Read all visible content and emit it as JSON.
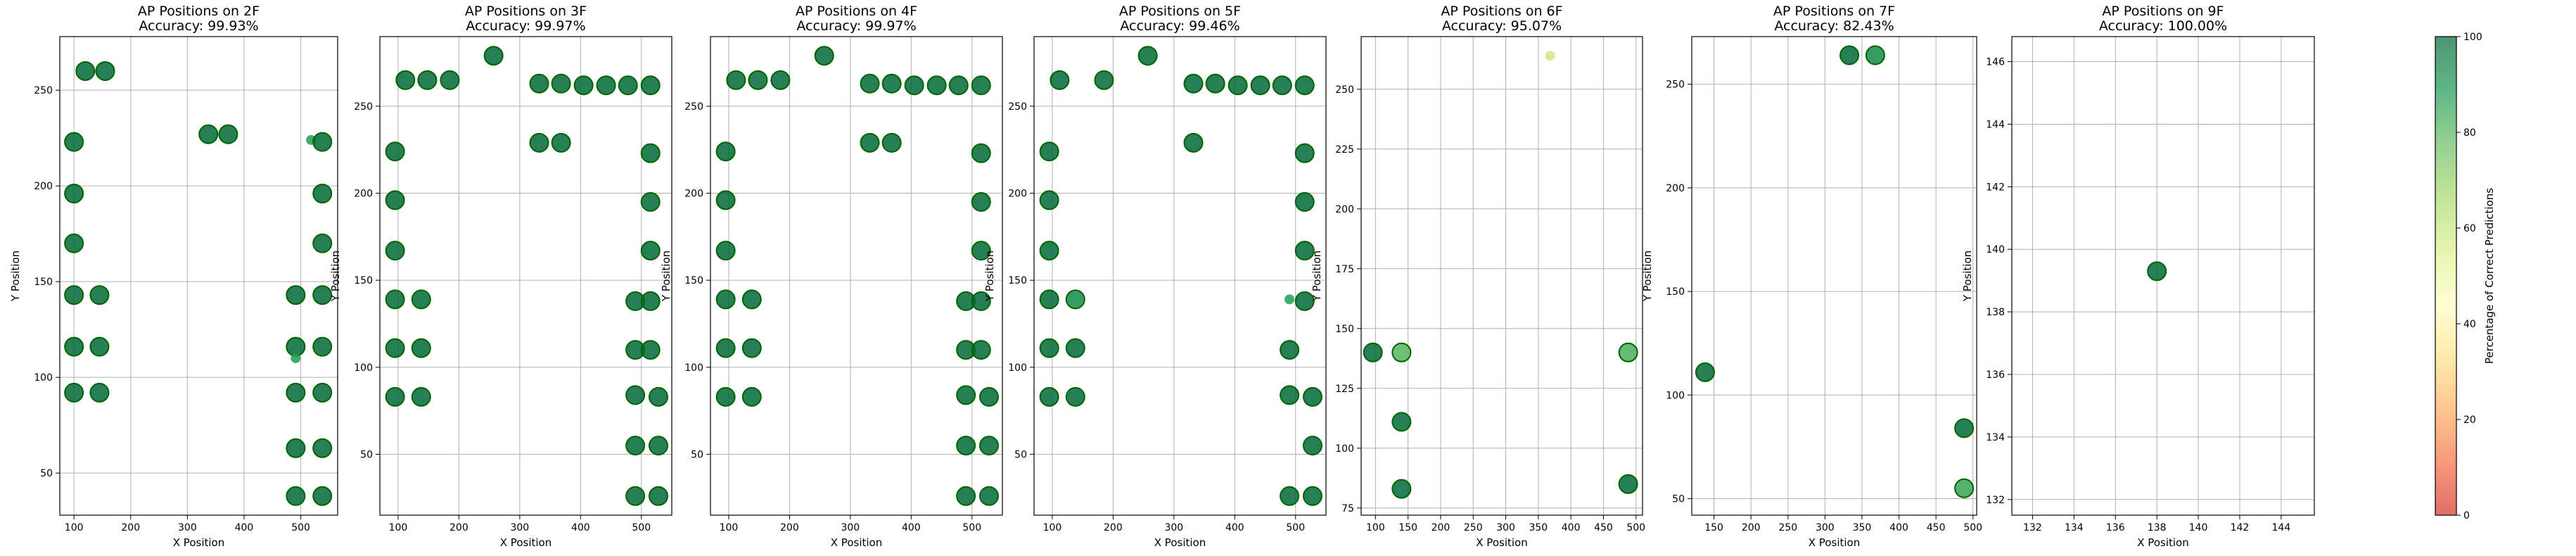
{
  "chart_data": [
    {
      "type": "scatter",
      "title": "AP Positions on 2F",
      "subtitle": "Accuracy: 99.93%",
      "xlabel": "X Position",
      "ylabel": "Y Position",
      "xlim": [
        75,
        565
      ],
      "ylim": [
        28,
        278
      ],
      "xticks": [
        100,
        200,
        300,
        400,
        500
      ],
      "yticks": [
        50,
        100,
        150,
        200,
        250
      ],
      "grid": true,
      "points": [
        {
          "x": 120,
          "y": 260,
          "pct": 100,
          "size": "large"
        },
        {
          "x": 155,
          "y": 260,
          "pct": 100,
          "size": "large"
        },
        {
          "x": 100,
          "y": 223,
          "pct": 100,
          "size": "large"
        },
        {
          "x": 100,
          "y": 196,
          "pct": 100,
          "size": "large"
        },
        {
          "x": 100,
          "y": 170,
          "pct": 100,
          "size": "large"
        },
        {
          "x": 100,
          "y": 143,
          "pct": 100,
          "size": "large"
        },
        {
          "x": 145,
          "y": 143,
          "pct": 100,
          "size": "large"
        },
        {
          "x": 100,
          "y": 116,
          "pct": 100,
          "size": "large"
        },
        {
          "x": 145,
          "y": 116,
          "pct": 100,
          "size": "large"
        },
        {
          "x": 100,
          "y": 92,
          "pct": 100,
          "size": "large"
        },
        {
          "x": 145,
          "y": 92,
          "pct": 100,
          "size": "large"
        },
        {
          "x": 337,
          "y": 227,
          "pct": 100,
          "size": "large"
        },
        {
          "x": 372,
          "y": 227,
          "pct": 100,
          "size": "large"
        },
        {
          "x": 518,
          "y": 224,
          "pct": 88,
          "size": "small"
        },
        {
          "x": 538,
          "y": 223,
          "pct": 100,
          "size": "large"
        },
        {
          "x": 538,
          "y": 196,
          "pct": 100,
          "size": "large"
        },
        {
          "x": 538,
          "y": 170,
          "pct": 100,
          "size": "large"
        },
        {
          "x": 491,
          "y": 143,
          "pct": 100,
          "size": "large"
        },
        {
          "x": 538,
          "y": 143,
          "pct": 100,
          "size": "large"
        },
        {
          "x": 491,
          "y": 116,
          "pct": 100,
          "size": "large"
        },
        {
          "x": 538,
          "y": 116,
          "pct": 100,
          "size": "large"
        },
        {
          "x": 491,
          "y": 110,
          "pct": 88,
          "size": "small"
        },
        {
          "x": 491,
          "y": 92,
          "pct": 100,
          "size": "large"
        },
        {
          "x": 538,
          "y": 92,
          "pct": 100,
          "size": "large"
        },
        {
          "x": 491,
          "y": 63,
          "pct": 100,
          "size": "large"
        },
        {
          "x": 538,
          "y": 63,
          "pct": 100,
          "size": "large"
        },
        {
          "x": 491,
          "y": 38,
          "pct": 100,
          "size": "large"
        },
        {
          "x": 538,
          "y": 38,
          "pct": 100,
          "size": "large"
        }
      ]
    },
    {
      "type": "scatter",
      "title": "AP Positions on 3F",
      "subtitle": "Accuracy: 99.97%",
      "xlabel": "X Position",
      "ylabel": "Y Position",
      "xlim": [
        70,
        550
      ],
      "ylim": [
        15,
        290
      ],
      "xticks": [
        100,
        200,
        300,
        400,
        500
      ],
      "yticks": [
        50,
        100,
        150,
        200,
        250
      ],
      "grid": true,
      "points": [
        {
          "x": 112,
          "y": 265,
          "pct": 100,
          "size": "large"
        },
        {
          "x": 148,
          "y": 265,
          "pct": 100,
          "size": "large"
        },
        {
          "x": 185,
          "y": 265,
          "pct": 100,
          "size": "large"
        },
        {
          "x": 257,
          "y": 279,
          "pct": 100,
          "size": "large"
        },
        {
          "x": 332,
          "y": 263,
          "pct": 100,
          "size": "large"
        },
        {
          "x": 368,
          "y": 263,
          "pct": 100,
          "size": "large"
        },
        {
          "x": 405,
          "y": 262,
          "pct": 100,
          "size": "large"
        },
        {
          "x": 442,
          "y": 262,
          "pct": 100,
          "size": "large"
        },
        {
          "x": 478,
          "y": 262,
          "pct": 100,
          "size": "large"
        },
        {
          "x": 515,
          "y": 262,
          "pct": 100,
          "size": "large"
        },
        {
          "x": 332,
          "y": 229,
          "pct": 100,
          "size": "large"
        },
        {
          "x": 368,
          "y": 229,
          "pct": 100,
          "size": "large"
        },
        {
          "x": 95,
          "y": 224,
          "pct": 100,
          "size": "large"
        },
        {
          "x": 95,
          "y": 196,
          "pct": 100,
          "size": "large"
        },
        {
          "x": 95,
          "y": 167,
          "pct": 100,
          "size": "large"
        },
        {
          "x": 95,
          "y": 139,
          "pct": 100,
          "size": "large"
        },
        {
          "x": 138,
          "y": 139,
          "pct": 100,
          "size": "large"
        },
        {
          "x": 95,
          "y": 111,
          "pct": 100,
          "size": "large"
        },
        {
          "x": 138,
          "y": 111,
          "pct": 100,
          "size": "large"
        },
        {
          "x": 95,
          "y": 83,
          "pct": 100,
          "size": "large"
        },
        {
          "x": 138,
          "y": 83,
          "pct": 100,
          "size": "large"
        },
        {
          "x": 515,
          "y": 223,
          "pct": 100,
          "size": "large"
        },
        {
          "x": 515,
          "y": 195,
          "pct": 100,
          "size": "large"
        },
        {
          "x": 515,
          "y": 167,
          "pct": 100,
          "size": "large"
        },
        {
          "x": 490,
          "y": 138,
          "pct": 100,
          "size": "large"
        },
        {
          "x": 515,
          "y": 138,
          "pct": 100,
          "size": "large"
        },
        {
          "x": 490,
          "y": 110,
          "pct": 100,
          "size": "large"
        },
        {
          "x": 515,
          "y": 110,
          "pct": 100,
          "size": "large"
        },
        {
          "x": 490,
          "y": 84,
          "pct": 100,
          "size": "large"
        },
        {
          "x": 528,
          "y": 83,
          "pct": 100,
          "size": "large"
        },
        {
          "x": 490,
          "y": 55,
          "pct": 100,
          "size": "large"
        },
        {
          "x": 528,
          "y": 55,
          "pct": 100,
          "size": "large"
        },
        {
          "x": 490,
          "y": 26,
          "pct": 100,
          "size": "large"
        },
        {
          "x": 528,
          "y": 26,
          "pct": 100,
          "size": "large"
        }
      ]
    },
    {
      "type": "scatter",
      "title": "AP Positions on 4F",
      "subtitle": "Accuracy: 99.97%",
      "xlabel": "X Position",
      "ylabel": "Y Position",
      "xlim": [
        70,
        550
      ],
      "ylim": [
        15,
        290
      ],
      "xticks": [
        100,
        200,
        300,
        400,
        500
      ],
      "yticks": [
        50,
        100,
        150,
        200,
        250
      ],
      "grid": true,
      "points": [
        {
          "x": 112,
          "y": 265,
          "pct": 100,
          "size": "large"
        },
        {
          "x": 148,
          "y": 265,
          "pct": 100,
          "size": "large"
        },
        {
          "x": 185,
          "y": 265,
          "pct": 100,
          "size": "large"
        },
        {
          "x": 257,
          "y": 279,
          "pct": 100,
          "size": "large"
        },
        {
          "x": 332,
          "y": 263,
          "pct": 100,
          "size": "large"
        },
        {
          "x": 368,
          "y": 263,
          "pct": 100,
          "size": "large"
        },
        {
          "x": 405,
          "y": 262,
          "pct": 100,
          "size": "large"
        },
        {
          "x": 442,
          "y": 262,
          "pct": 100,
          "size": "large"
        },
        {
          "x": 478,
          "y": 262,
          "pct": 100,
          "size": "large"
        },
        {
          "x": 515,
          "y": 262,
          "pct": 100,
          "size": "large"
        },
        {
          "x": 332,
          "y": 229,
          "pct": 100,
          "size": "large"
        },
        {
          "x": 368,
          "y": 229,
          "pct": 100,
          "size": "large"
        },
        {
          "x": 95,
          "y": 224,
          "pct": 100,
          "size": "large"
        },
        {
          "x": 95,
          "y": 196,
          "pct": 100,
          "size": "large"
        },
        {
          "x": 95,
          "y": 167,
          "pct": 100,
          "size": "large"
        },
        {
          "x": 95,
          "y": 139,
          "pct": 100,
          "size": "large"
        },
        {
          "x": 138,
          "y": 139,
          "pct": 100,
          "size": "large"
        },
        {
          "x": 95,
          "y": 111,
          "pct": 100,
          "size": "large"
        },
        {
          "x": 138,
          "y": 111,
          "pct": 100,
          "size": "large"
        },
        {
          "x": 95,
          "y": 83,
          "pct": 100,
          "size": "large"
        },
        {
          "x": 138,
          "y": 83,
          "pct": 100,
          "size": "large"
        },
        {
          "x": 515,
          "y": 223,
          "pct": 100,
          "size": "large"
        },
        {
          "x": 515,
          "y": 195,
          "pct": 100,
          "size": "large"
        },
        {
          "x": 515,
          "y": 167,
          "pct": 100,
          "size": "large"
        },
        {
          "x": 490,
          "y": 138,
          "pct": 100,
          "size": "large"
        },
        {
          "x": 515,
          "y": 138,
          "pct": 100,
          "size": "large"
        },
        {
          "x": 490,
          "y": 110,
          "pct": 100,
          "size": "large"
        },
        {
          "x": 515,
          "y": 110,
          "pct": 100,
          "size": "large"
        },
        {
          "x": 490,
          "y": 84,
          "pct": 100,
          "size": "large"
        },
        {
          "x": 528,
          "y": 83,
          "pct": 100,
          "size": "large"
        },
        {
          "x": 490,
          "y": 55,
          "pct": 100,
          "size": "large"
        },
        {
          "x": 528,
          "y": 55,
          "pct": 100,
          "size": "large"
        },
        {
          "x": 490,
          "y": 26,
          "pct": 100,
          "size": "large"
        },
        {
          "x": 528,
          "y": 26,
          "pct": 100,
          "size": "large"
        }
      ]
    },
    {
      "type": "scatter",
      "title": "AP Positions on 5F",
      "subtitle": "Accuracy: 99.46%",
      "xlabel": "X Position",
      "ylabel": "Y Position",
      "xlim": [
        70,
        550
      ],
      "ylim": [
        15,
        290
      ],
      "xticks": [
        100,
        200,
        300,
        400,
        500
      ],
      "yticks": [
        50,
        100,
        150,
        200,
        250
      ],
      "grid": true,
      "points": [
        {
          "x": 112,
          "y": 265,
          "pct": 100,
          "size": "large"
        },
        {
          "x": 185,
          "y": 265,
          "pct": 100,
          "size": "large"
        },
        {
          "x": 257,
          "y": 279,
          "pct": 100,
          "size": "large"
        },
        {
          "x": 332,
          "y": 263,
          "pct": 100,
          "size": "large"
        },
        {
          "x": 368,
          "y": 263,
          "pct": 100,
          "size": "large"
        },
        {
          "x": 405,
          "y": 262,
          "pct": 100,
          "size": "large"
        },
        {
          "x": 442,
          "y": 262,
          "pct": 100,
          "size": "large"
        },
        {
          "x": 478,
          "y": 262,
          "pct": 100,
          "size": "large"
        },
        {
          "x": 515,
          "y": 262,
          "pct": 100,
          "size": "large"
        },
        {
          "x": 332,
          "y": 229,
          "pct": 100,
          "size": "large"
        },
        {
          "x": 95,
          "y": 224,
          "pct": 100,
          "size": "large"
        },
        {
          "x": 95,
          "y": 196,
          "pct": 100,
          "size": "large"
        },
        {
          "x": 95,
          "y": 167,
          "pct": 100,
          "size": "large"
        },
        {
          "x": 95,
          "y": 139,
          "pct": 100,
          "size": "large"
        },
        {
          "x": 138,
          "y": 139,
          "pct": 92,
          "size": "large"
        },
        {
          "x": 95,
          "y": 111,
          "pct": 100,
          "size": "large"
        },
        {
          "x": 138,
          "y": 111,
          "pct": 100,
          "size": "large"
        },
        {
          "x": 95,
          "y": 83,
          "pct": 100,
          "size": "large"
        },
        {
          "x": 138,
          "y": 83,
          "pct": 100,
          "size": "large"
        },
        {
          "x": 515,
          "y": 223,
          "pct": 100,
          "size": "large"
        },
        {
          "x": 515,
          "y": 195,
          "pct": 100,
          "size": "large"
        },
        {
          "x": 515,
          "y": 167,
          "pct": 100,
          "size": "large"
        },
        {
          "x": 490,
          "y": 139,
          "pct": 88,
          "size": "small"
        },
        {
          "x": 515,
          "y": 138,
          "pct": 100,
          "size": "large"
        },
        {
          "x": 490,
          "y": 110,
          "pct": 100,
          "size": "large"
        },
        {
          "x": 490,
          "y": 84,
          "pct": 100,
          "size": "large"
        },
        {
          "x": 528,
          "y": 83,
          "pct": 100,
          "size": "large"
        },
        {
          "x": 528,
          "y": 55,
          "pct": 100,
          "size": "large"
        },
        {
          "x": 490,
          "y": 26,
          "pct": 100,
          "size": "large"
        },
        {
          "x": 528,
          "y": 26,
          "pct": 100,
          "size": "large"
        }
      ]
    },
    {
      "type": "scatter",
      "title": "AP Positions on 6F",
      "subtitle": "Accuracy: 95.07%",
      "xlabel": "X Position",
      "ylabel": "Y Position",
      "xlim": [
        78,
        510
      ],
      "ylim": [
        72,
        272
      ],
      "xticks": [
        100,
        150,
        200,
        250,
        300,
        350,
        400,
        450,
        500
      ],
      "yticks": [
        75,
        100,
        125,
        150,
        175,
        200,
        225,
        250
      ],
      "grid": true,
      "points": [
        {
          "x": 368,
          "y": 264,
          "pct": 58,
          "size": "small"
        },
        {
          "x": 96,
          "y": 140,
          "pct": 100,
          "size": "large"
        },
        {
          "x": 140,
          "y": 140,
          "pct": 80,
          "size": "large"
        },
        {
          "x": 488,
          "y": 140,
          "pct": 82,
          "size": "large"
        },
        {
          "x": 140,
          "y": 111,
          "pct": 100,
          "size": "large"
        },
        {
          "x": 140,
          "y": 83,
          "pct": 100,
          "size": "large"
        },
        {
          "x": 488,
          "y": 85,
          "pct": 100,
          "size": "large"
        }
      ]
    },
    {
      "type": "scatter",
      "title": "AP Positions on 7F",
      "subtitle": "Accuracy: 82.43%",
      "xlabel": "X Position",
      "ylabel": "Y Position",
      "xlim": [
        120,
        505
      ],
      "ylim": [
        42,
        273
      ],
      "xticks": [
        150,
        200,
        250,
        300,
        350,
        400,
        450,
        500
      ],
      "yticks": [
        50,
        100,
        150,
        200,
        250
      ],
      "grid": true,
      "points": [
        {
          "x": 333,
          "y": 264,
          "pct": 100,
          "size": "large"
        },
        {
          "x": 368,
          "y": 264,
          "pct": 92,
          "size": "large"
        },
        {
          "x": 138,
          "y": 111,
          "pct": 100,
          "size": "large"
        },
        {
          "x": 488,
          "y": 84,
          "pct": 100,
          "size": "large"
        },
        {
          "x": 488,
          "y": 55,
          "pct": 85,
          "size": "large"
        }
      ]
    },
    {
      "type": "scatter",
      "title": "AP Positions on 9F",
      "subtitle": "Accuracy: 100.00%",
      "xlabel": "X Position",
      "ylabel": "Y Position",
      "xlim": [
        131,
        145.6
      ],
      "ylim": [
        131.5,
        146.8
      ],
      "xticks": [
        132,
        134,
        136,
        138,
        140,
        142,
        144
      ],
      "yticks": [
        132,
        134,
        136,
        138,
        140,
        142,
        144,
        146
      ],
      "grid": true,
      "points": [
        {
          "x": 138,
          "y": 139.3,
          "pct": 100,
          "size": "large"
        }
      ]
    }
  ],
  "colorbar": {
    "label": "Percentage of Correct Predictions",
    "min": 0,
    "max": 100,
    "ticks": [
      0,
      20,
      40,
      60,
      80,
      100
    ],
    "colormap": "RdYlGn",
    "stops": [
      "#d73027",
      "#f46d43",
      "#fdae61",
      "#fee08b",
      "#ffffbf",
      "#d9ef8b",
      "#a6d96a",
      "#66bd63",
      "#1a9850",
      "#006837"
    ]
  }
}
